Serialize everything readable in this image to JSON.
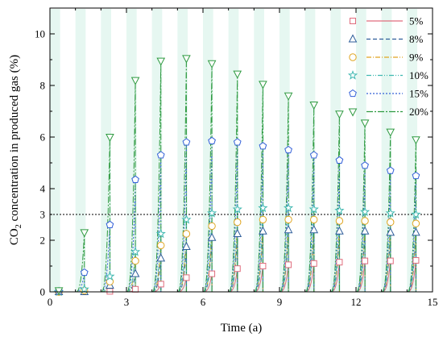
{
  "chart_data": {
    "type": "scatter",
    "xlabel": "Time (a)",
    "ylabel_prefix": "CO",
    "ylabel_sub": "2",
    "ylabel_suffix": " concentration in produced gas (%)",
    "xlim": [
      0,
      15
    ],
    "ylim": [
      0,
      11
    ],
    "xticks": [
      0,
      3,
      6,
      9,
      12,
      15
    ],
    "yticks": [
      0,
      2,
      3,
      4,
      6,
      8,
      10
    ],
    "minor_step": 1,
    "threshold": 3,
    "x": [
      0.35,
      1.35,
      2.35,
      3.35,
      4.35,
      5.35,
      6.35,
      7.35,
      8.35,
      9.35,
      10.35,
      11.35,
      12.35,
      13.35,
      14.35
    ],
    "series": [
      {
        "name": "5%",
        "marker": "square",
        "color": "#e06c7d",
        "dash": "",
        "values": [
          0,
          0,
          0.02,
          0.1,
          0.3,
          0.55,
          0.7,
          0.9,
          1.0,
          1.05,
          1.1,
          1.15,
          1.2,
          1.2,
          1.22
        ]
      },
      {
        "name": "8%",
        "marker": "triangle-up",
        "color": "#2e5d9a",
        "dash": "5,3",
        "values": [
          0,
          0,
          0.25,
          0.7,
          1.3,
          1.75,
          2.1,
          2.25,
          2.35,
          2.4,
          2.4,
          2.35,
          2.35,
          2.3,
          2.3
        ]
      },
      {
        "name": "9%",
        "marker": "circle",
        "color": "#e0a520",
        "dash": "6,2,1,2",
        "values": [
          0,
          0.05,
          0.4,
          1.2,
          1.8,
          2.25,
          2.55,
          2.7,
          2.8,
          2.8,
          2.8,
          2.75,
          2.75,
          2.7,
          2.65
        ]
      },
      {
        "name": "10%",
        "marker": "star",
        "color": "#3fb8b0",
        "dash": "6,2,1,2,1,2",
        "values": [
          0,
          0.1,
          0.6,
          1.55,
          2.25,
          2.8,
          3.05,
          3.2,
          3.25,
          3.25,
          3.2,
          3.15,
          3.1,
          3.05,
          3.0
        ]
      },
      {
        "name": "15%",
        "marker": "pentagon",
        "color": "#3360d8",
        "dash": "2,2",
        "values": [
          0.02,
          0.75,
          2.6,
          4.35,
          5.3,
          5.8,
          5.85,
          5.8,
          5.65,
          5.5,
          5.3,
          5.1,
          4.9,
          4.7,
          4.5
        ]
      },
      {
        "name": "20%",
        "marker": "triangle-down",
        "color": "#2e9a40",
        "dash": "8,2,2,2",
        "values": [
          0.05,
          2.3,
          6.0,
          8.2,
          8.95,
          9.05,
          8.85,
          8.45,
          8.05,
          7.6,
          7.25,
          6.9,
          6.55,
          6.2,
          5.9
        ]
      }
    ]
  }
}
